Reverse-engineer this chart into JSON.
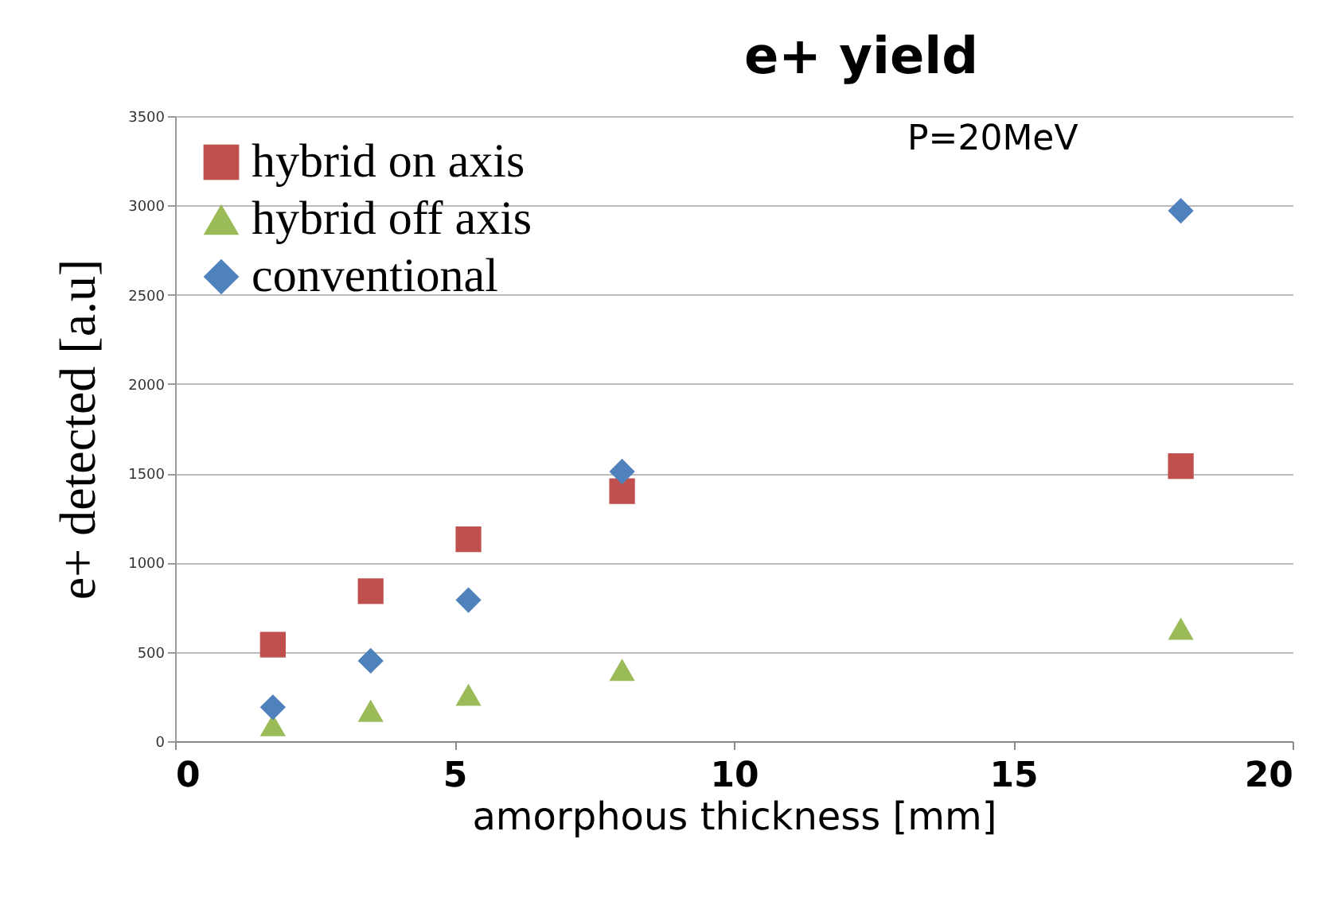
{
  "chart_data": {
    "type": "scatter",
    "title": "e+ yield",
    "xlabel": "amorphous thickness [mm]",
    "ylabel": "e+ detected [a.u]",
    "annotations": [
      "P=20MeV"
    ],
    "x": [
      1.75,
      3.5,
      5.25,
      8,
      18
    ],
    "series": [
      {
        "name": "hybrid on axis",
        "color": "#c0504d",
        "marker": "square",
        "values": [
          540,
          840,
          1130,
          1400,
          1540
        ]
      },
      {
        "name": "hybrid off axis",
        "color": "#9bbb59",
        "marker": "triangle",
        "values": [
          90,
          170,
          260,
          400,
          630
        ]
      },
      {
        "name": "conventional",
        "color": "#4f81bd",
        "marker": "diamond",
        "values": [
          190,
          450,
          790,
          1510,
          2970
        ]
      }
    ],
    "xlim": [
      0,
      20
    ],
    "xticks": [
      0,
      5,
      10,
      15,
      20
    ],
    "ylim": [
      0,
      3500
    ],
    "yticks": [
      0,
      500,
      1000,
      1500,
      2000,
      2500,
      3000,
      3500
    ],
    "grid": "y",
    "legend": "top left"
  }
}
